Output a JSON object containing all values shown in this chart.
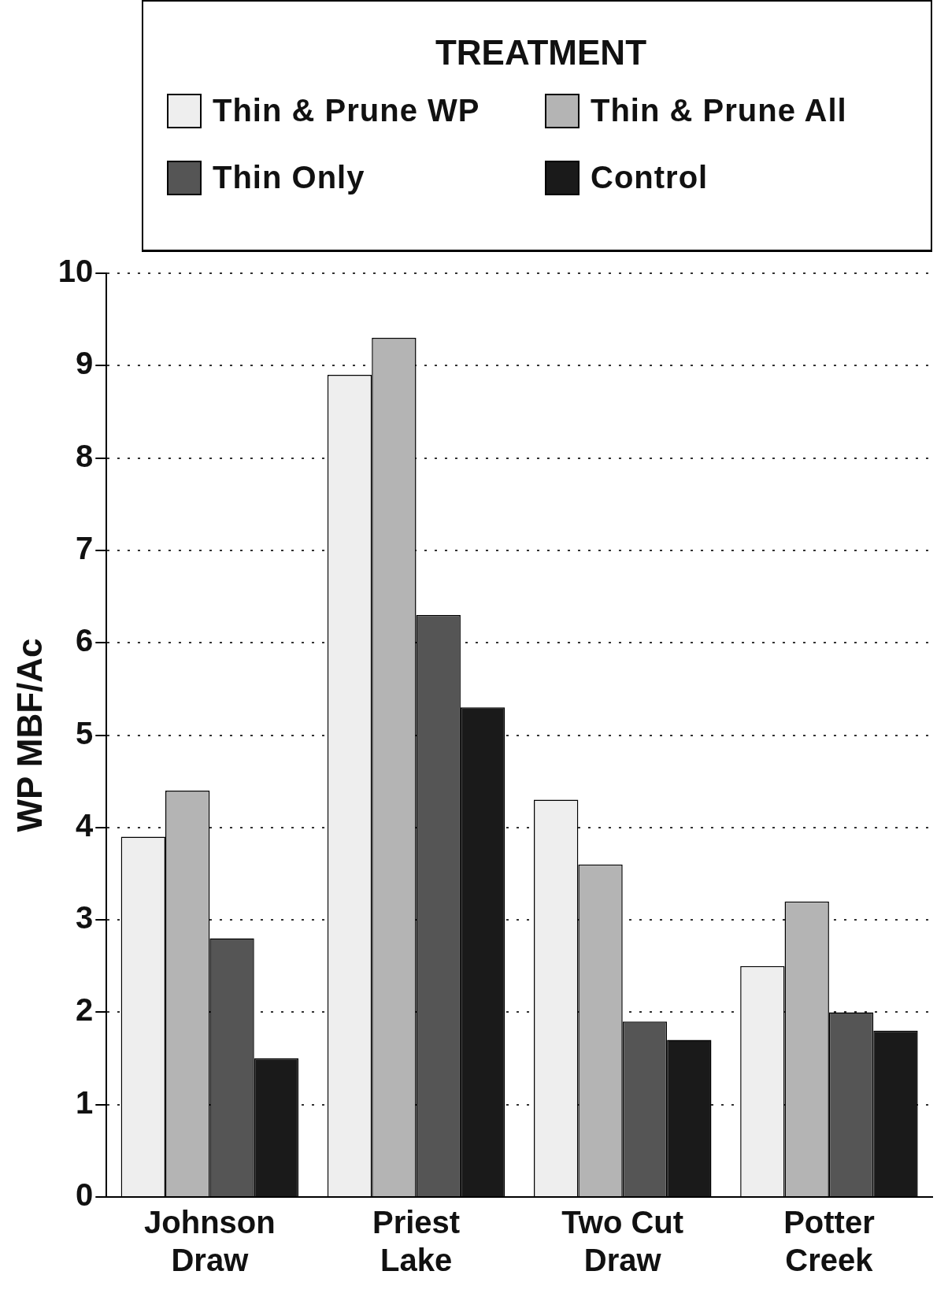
{
  "chart_data": {
    "type": "bar",
    "legend_title": "TREATMENT",
    "ylabel": "WP MBF/Ac",
    "categories": [
      "Johnson Draw",
      "Priest Lake",
      "Two Cut Draw",
      "Potter Creek"
    ],
    "series": [
      {
        "name": "Thin & Prune WP",
        "color": "#eeeeee",
        "values": [
          3.9,
          8.9,
          4.3,
          2.5
        ]
      },
      {
        "name": "Thin & Prune All",
        "color": "#b4b4b4",
        "values": [
          4.4,
          9.3,
          3.6,
          3.2
        ]
      },
      {
        "name": "Thin Only",
        "color": "#555555",
        "values": [
          2.8,
          6.3,
          1.9,
          2.0
        ]
      },
      {
        "name": "Control",
        "color": "#1a1a1a",
        "values": [
          1.5,
          5.3,
          1.7,
          1.8
        ]
      }
    ],
    "ylim": [
      0,
      10
    ],
    "yticks": [
      0,
      1,
      2,
      3,
      4,
      5,
      6,
      7,
      8,
      9,
      10
    ],
    "grid": "y",
    "legend": "top"
  }
}
